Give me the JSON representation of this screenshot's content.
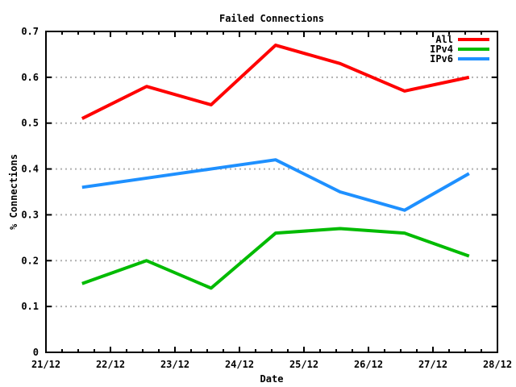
{
  "chart_data": {
    "type": "line",
    "title": "Failed Connections",
    "xlabel": "Date",
    "ylabel": "% Connections",
    "x_tick_labels": [
      "21/12",
      "22/12",
      "23/12",
      "24/12",
      "25/12",
      "26/12",
      "27/12",
      "28/12"
    ],
    "x_minor_ticks_per_interval": 3,
    "x_range_days": 7,
    "point_day_offset": 0.56,
    "y_ticks": [
      0,
      0.1,
      0.2,
      0.3,
      0.4,
      0.5,
      0.6,
      0.7
    ],
    "y_tick_labels": [
      "0",
      "0.1",
      "0.2",
      "0.3",
      "0.4",
      "0.5",
      "0.6",
      "0.7"
    ],
    "ylim": [
      0,
      0.7
    ],
    "grid": {
      "horizontal_dashed": true,
      "color": "#b0b0b0"
    },
    "axis_color": "#000000",
    "background_color": "#ffffff",
    "legend": {
      "position": "top-right-inside"
    },
    "series": [
      {
        "name": "All",
        "color": "#ff0000",
        "values": [
          0.51,
          0.58,
          0.54,
          0.67,
          0.63,
          0.57,
          0.6
        ]
      },
      {
        "name": "IPv4",
        "color": "#00bb00",
        "values": [
          0.15,
          0.2,
          0.14,
          0.26,
          0.27,
          0.26,
          0.21
        ]
      },
      {
        "name": "IPv6",
        "color": "#1e90ff",
        "values": [
          0.36,
          0.38,
          0.4,
          0.42,
          0.35,
          0.31,
          0.39
        ]
      }
    ]
  }
}
